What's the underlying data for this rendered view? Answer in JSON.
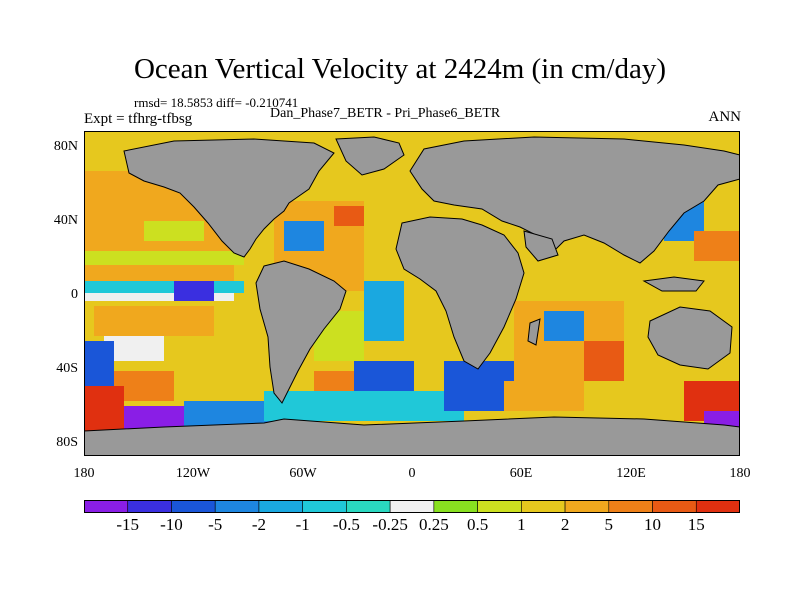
{
  "title": "Ocean Vertical Velocity at 2424m (in cm/day)",
  "stats": "rmsd= 18.5853 diff= -0.210741",
  "expt": "Expt = tfhrg-tfbsg",
  "cases": "Dan_Phase7_BETR - Pri_Phase6_BETR",
  "season": "ANN",
  "lat_labels": [
    "80N",
    "40N",
    "0",
    "40S",
    "80S"
  ],
  "lon_labels": [
    "180",
    "120W",
    "60W",
    "0",
    "60E",
    "120E",
    "180"
  ],
  "colorbar": {
    "labels": [
      "-15",
      "-10",
      "-5",
      "-2",
      "-1",
      "-0.5",
      "-0.25",
      "0.25",
      "0.5",
      "1",
      "2",
      "5",
      "10",
      "15"
    ],
    "colors": [
      "#8a1ee6",
      "#3a2fe0",
      "#1a56d8",
      "#1e86e0",
      "#1aa8e0",
      "#20c8d8",
      "#2ad8c0",
      "#f0f0f0",
      "#88e020",
      "#cce020",
      "#e6c81e",
      "#f0a81e",
      "#ee8018",
      "#e85a14",
      "#e03010"
    ]
  },
  "land_color": "#999999"
}
